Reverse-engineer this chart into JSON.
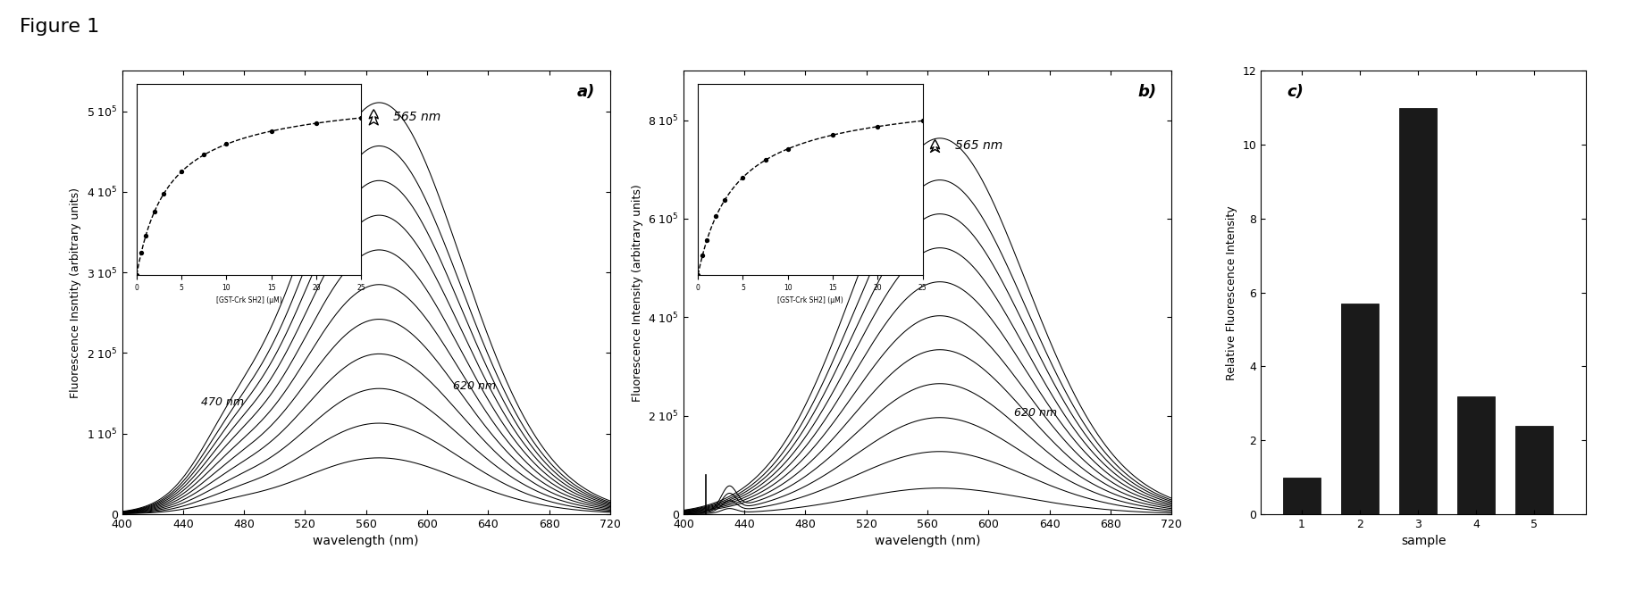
{
  "title": "Figure 1",
  "panel_a": {
    "label": "a)",
    "xlabel": "wavelength (nm)",
    "ylabel": "Fluorescence Insntity (arbitrary units)",
    "xrange": [
      400,
      720
    ],
    "yrange": [
      0,
      550000.0
    ],
    "yticks": [
      0,
      100000.0,
      200000.0,
      300000.0,
      400000.0,
      500000.0
    ],
    "peak_label": "565 nm",
    "label_470": "470 nm",
    "label_620": "620 nm",
    "n_curves": 11,
    "peak_values": [
      475000.0,
      425000.0,
      385000.0,
      345000.0,
      305000.0,
      265000.0,
      225000.0,
      185000.0,
      145000.0,
      105000.0,
      65000.0
    ],
    "inset_xlabel": "[GST-Crk SH2] (µM)"
  },
  "panel_b": {
    "label": "b)",
    "xlabel": "wavelength (nm)",
    "ylabel": "Fluorescence Intensity (arbitrary units)",
    "xrange": [
      400,
      720
    ],
    "yrange": [
      0,
      900000.0
    ],
    "yticks": [
      0,
      200000.0,
      400000.0,
      600000.0,
      800000.0
    ],
    "peak_label": "565 nm",
    "label_620": "620 nm",
    "n_curves": 11,
    "peak_values": [
      720000.0,
      640000.0,
      575000.0,
      510000.0,
      445000.0,
      380000.0,
      315000.0,
      250000.0,
      185000.0,
      120000.0,
      50000.0
    ],
    "inset_xlabel": "[GST-Crk SH2] (µM)"
  },
  "panel_c": {
    "label": "c)",
    "xlabel": "sample",
    "ylabel": "Relative Fluorescence Intensity",
    "yrange": [
      0,
      12
    ],
    "yticks": [
      0,
      2,
      4,
      6,
      8,
      10,
      12
    ],
    "bar_values": [
      1.0,
      5.7,
      11.0,
      3.2,
      2.4
    ],
    "bar_positions": [
      1,
      2,
      3,
      4,
      5
    ],
    "bar_color": "#1a1a1a"
  },
  "background_color": "#ffffff"
}
